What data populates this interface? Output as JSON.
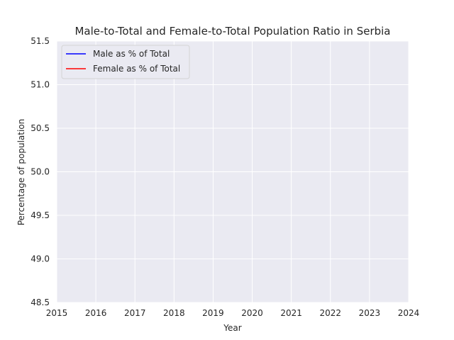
{
  "chart_data": {
    "type": "line",
    "title": "Male-to-Total and Female-to-Total Population Ratio in Serbia",
    "xlabel": "Year",
    "ylabel": "Percentage of population",
    "xlim": [
      2015,
      2024
    ],
    "ylim": [
      48.5,
      51.5
    ],
    "x_ticks": [
      "2015",
      "2016",
      "2017",
      "2018",
      "2019",
      "2020",
      "2021",
      "2022",
      "2023",
      "2024"
    ],
    "y_ticks": [
      "48.5",
      "49.0",
      "49.5",
      "50.0",
      "50.5",
      "51.0",
      "51.5"
    ],
    "grid": true,
    "legend_position": "top-left",
    "series": [
      {
        "name": "Male as % of Total",
        "color": "#0000ff",
        "x": [],
        "y": []
      },
      {
        "name": "Female as % of Total",
        "color": "#ff0000",
        "x": [],
        "y": []
      }
    ]
  }
}
